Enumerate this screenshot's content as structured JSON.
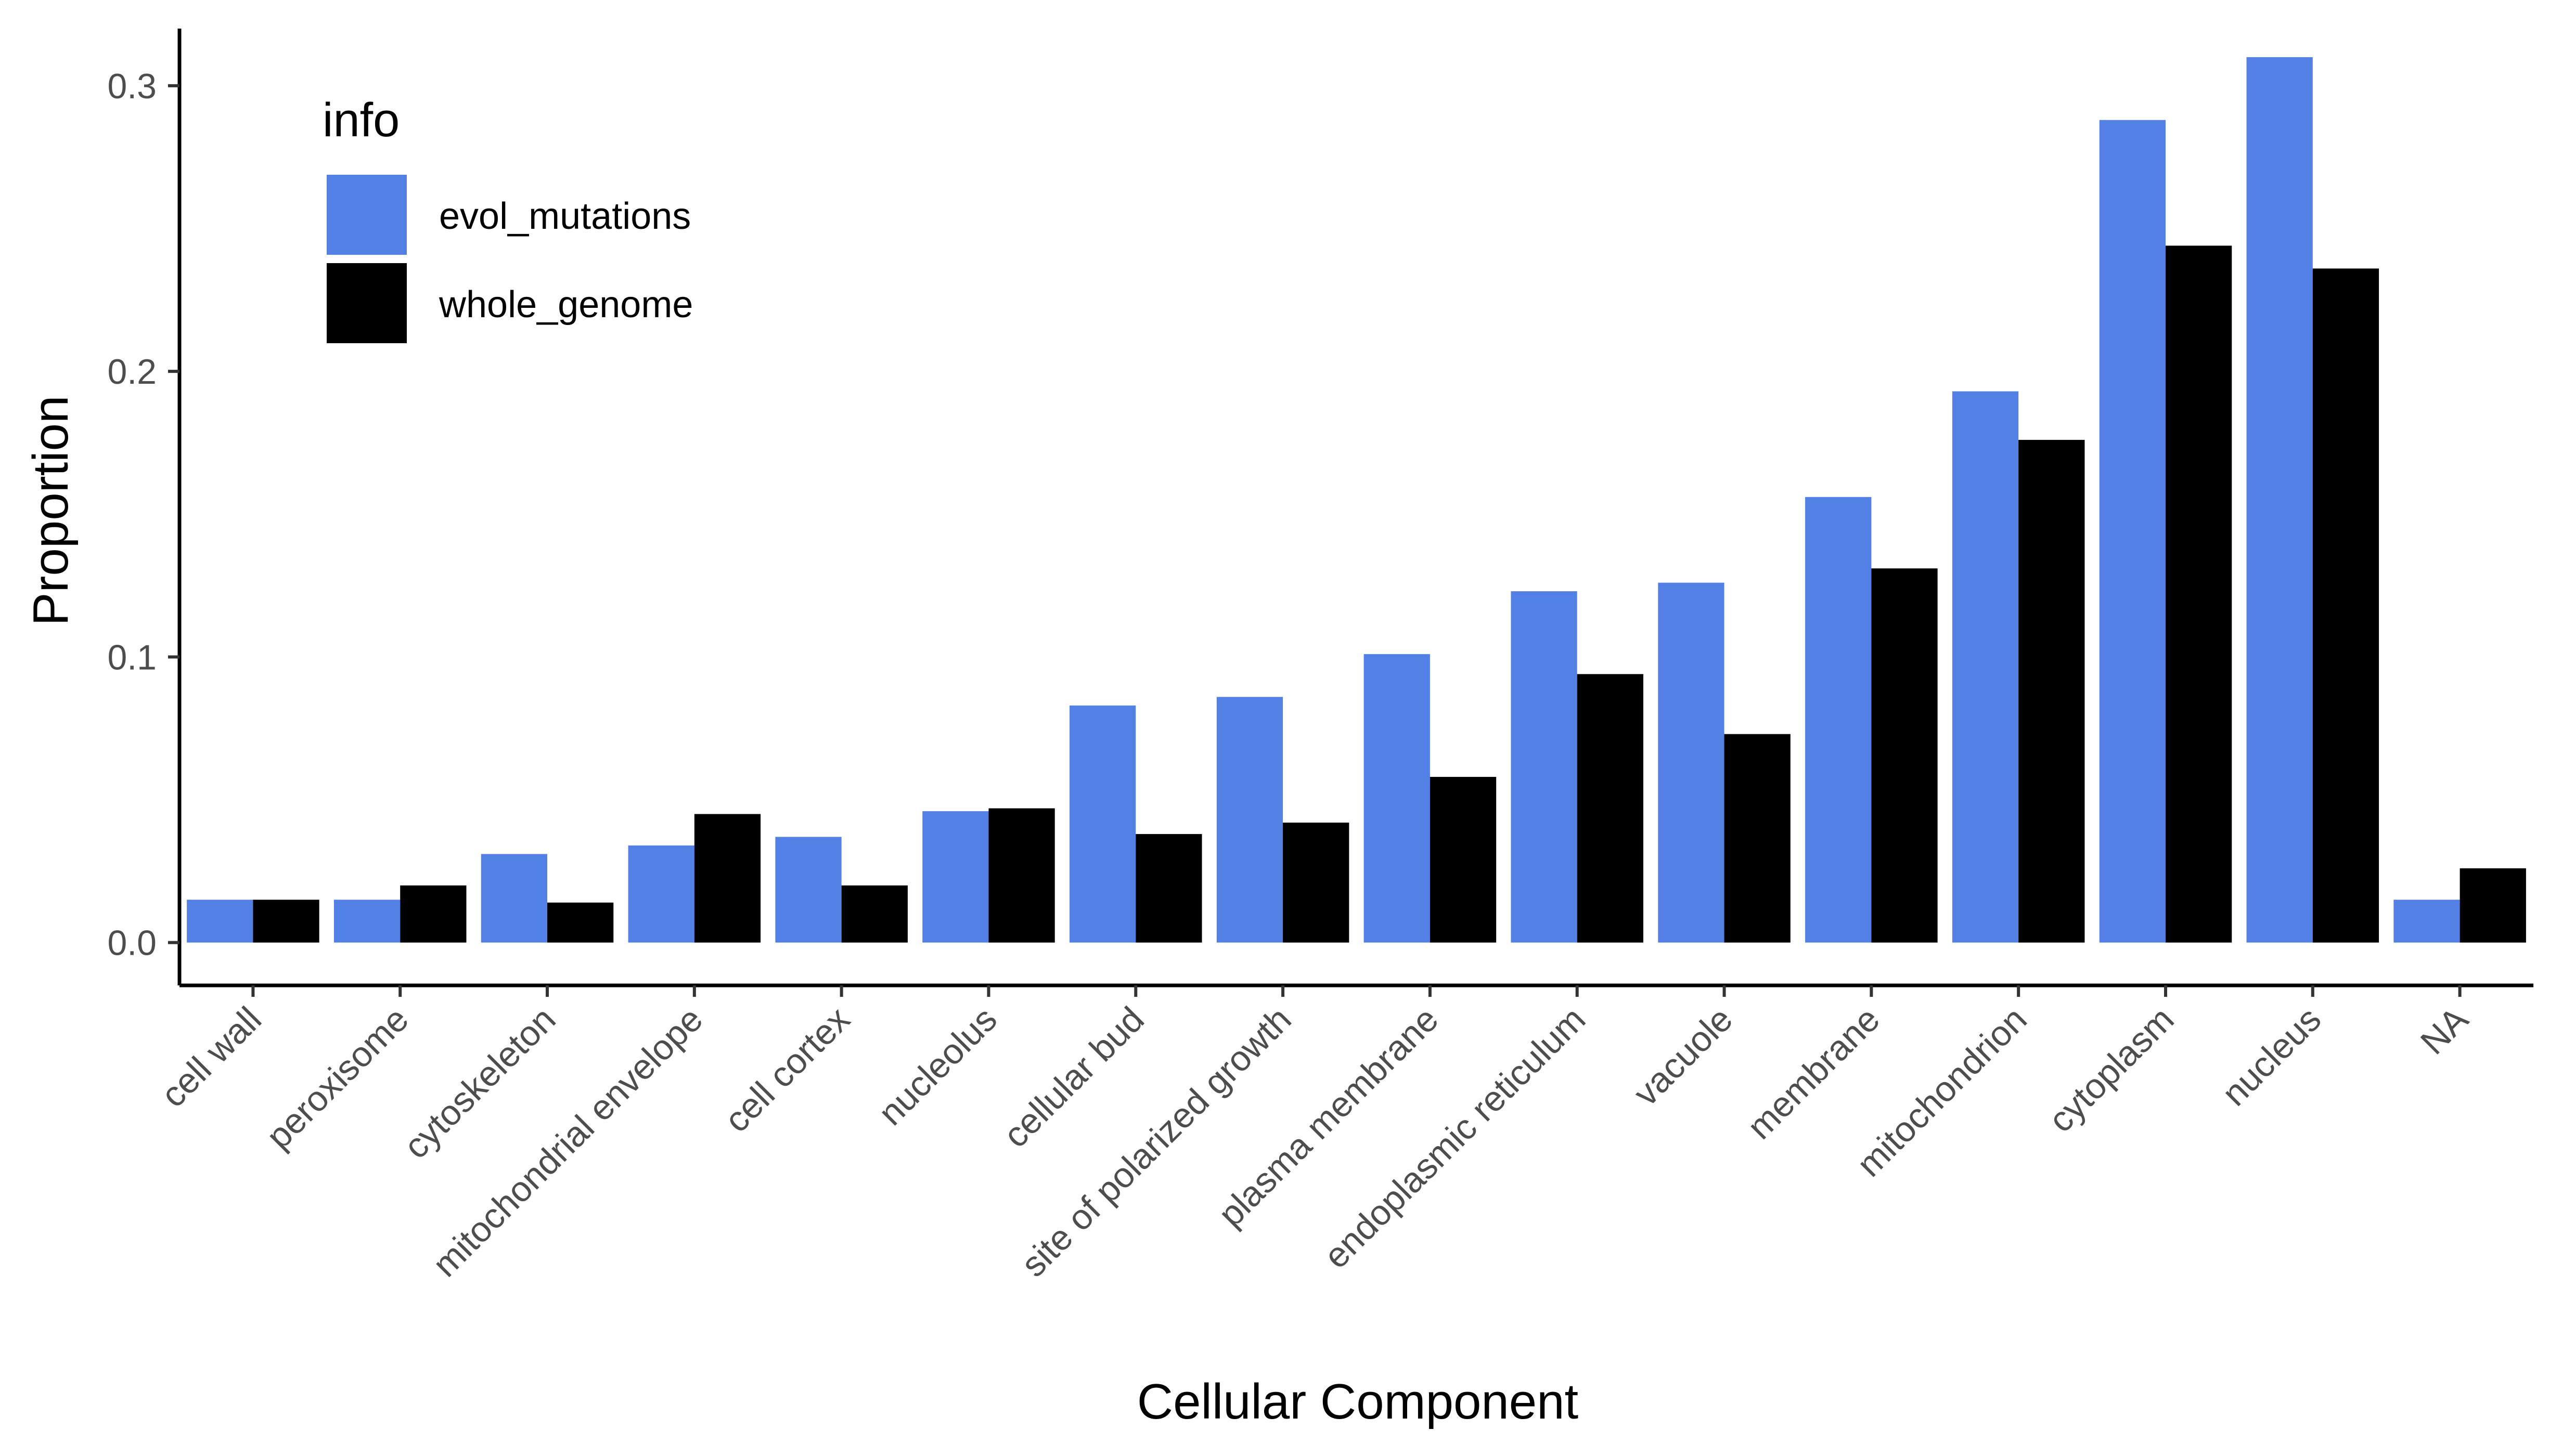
{
  "chart_data": {
    "type": "bar",
    "title": "",
    "xlabel": "Cellular Component",
    "ylabel": "Proportion",
    "ylim": [
      -0.015,
      0.32
    ],
    "yticks": [
      {
        "value": 0.0,
        "label": "0.0"
      },
      {
        "value": 0.1,
        "label": "0.1"
      },
      {
        "value": 0.2,
        "label": "0.2"
      },
      {
        "value": 0.3,
        "label": "0.3"
      }
    ],
    "categories": [
      "cell wall",
      "peroxisome",
      "cytoskeleton",
      "mitochondrial envelope",
      "cell cortex",
      "nucleolus",
      "cellular bud",
      "site of polarized growth",
      "plasma membrane",
      "endoplasmic reticulum",
      "vacuole",
      "membrane",
      "mitochondrion",
      "cytoplasm",
      "nucleus",
      "NA"
    ],
    "legend": {
      "title": "info",
      "position": "top-left"
    },
    "grid": false,
    "series": [
      {
        "name": "evol_mutations",
        "color": "#5380E4",
        "values": [
          0.015,
          0.015,
          0.031,
          0.034,
          0.037,
          0.046,
          0.083,
          0.086,
          0.101,
          0.123,
          0.126,
          0.156,
          0.193,
          0.288,
          0.31,
          0.015
        ]
      },
      {
        "name": "whole_genome",
        "color": "#000000",
        "values": [
          0.015,
          0.02,
          0.014,
          0.045,
          0.02,
          0.047,
          0.038,
          0.042,
          0.058,
          0.094,
          0.073,
          0.131,
          0.176,
          0.244,
          0.236,
          0.026
        ]
      }
    ]
  }
}
